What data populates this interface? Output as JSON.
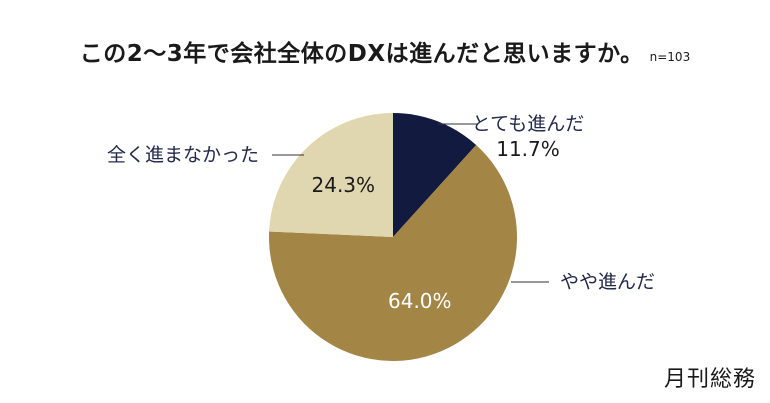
{
  "chart_data": {
    "type": "pie",
    "title": "この2〜3年で会社全体のDXは進んだと思いますか。",
    "note": "n=103",
    "start_angle_deg": 0,
    "direction": "clockwise",
    "slices": [
      {
        "label": "とても進んだ",
        "value": 11.7,
        "value_label": "11.7%",
        "color": "#121a3f"
      },
      {
        "label": "やや進んだ",
        "value": 64.0,
        "value_label": "64.0%",
        "color": "#a38546"
      },
      {
        "label": "全く進まなかった",
        "value": 24.3,
        "value_label": "24.3%",
        "color": "#e0d6b0"
      }
    ]
  },
  "brand": "月刊総務"
}
